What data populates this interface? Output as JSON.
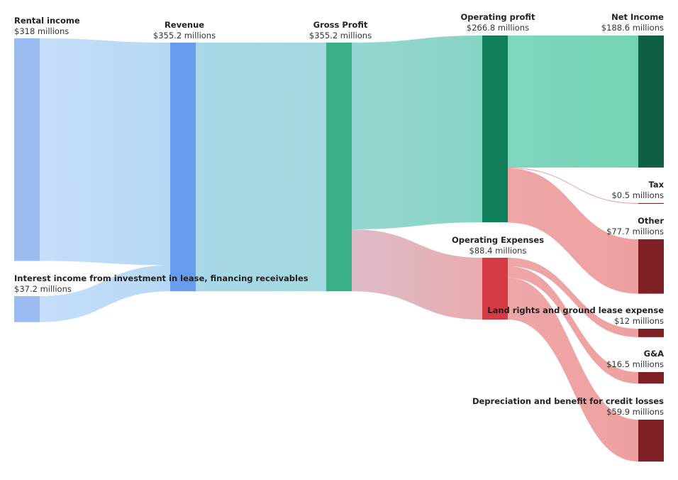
{
  "chart_data": {
    "type": "sankey",
    "unit": "millions",
    "nodes": [
      {
        "id": "rental",
        "title": "Rental income",
        "value_label": "$318 millions",
        "value": 318,
        "color": "#9bbcf0"
      },
      {
        "id": "interest",
        "title": "Interest income from investment in lease, financing receivables",
        "value_label": "$37.2 millions",
        "value": 37.2,
        "color": "#9bbcf0"
      },
      {
        "id": "revenue",
        "title": "Revenue",
        "value_label": "$355.2 millions",
        "value": 355.2,
        "color": "#679cee"
      },
      {
        "id": "gross",
        "title": "Gross Profit",
        "value_label": "$355.2 millions",
        "value": 355.2,
        "color": "#3aaf88"
      },
      {
        "id": "opprofit",
        "title": "Operating profit",
        "value_label": "$266.8 millions",
        "value": 266.8,
        "color": "#107e5a"
      },
      {
        "id": "opex",
        "title": "Operating Expenses",
        "value_label": "$88.4 millions",
        "value": 88.4,
        "color": "#d63a44"
      },
      {
        "id": "net",
        "title": "Net Income",
        "value_label": "$188.6 millions",
        "value": 188.6,
        "color": "#0e5f44"
      },
      {
        "id": "tax",
        "title": "Tax",
        "value_label": "$0.5 millions",
        "value": 0.5,
        "color": "#7e2024"
      },
      {
        "id": "other",
        "title": "Other",
        "value_label": "$77.7 millions",
        "value": 77.7,
        "color": "#7e2024"
      },
      {
        "id": "land",
        "title": "Land rights and ground lease expense",
        "value_label": "$12 millions",
        "value": 12,
        "color": "#7e2024"
      },
      {
        "id": "ga",
        "title": "G&A",
        "value_label": "$16.5 millions",
        "value": 16.5,
        "color": "#7e2024"
      },
      {
        "id": "dep",
        "title": "Depreciation and benefit for credit losses",
        "value_label": "$59.9 millions",
        "value": 59.9,
        "color": "#7e2024"
      }
    ],
    "links": [
      {
        "source": "rental",
        "target": "revenue",
        "value": 318,
        "color_from": "#c5defa",
        "color_to": "#b6d8f4"
      },
      {
        "source": "interest",
        "target": "revenue",
        "value": 37.2,
        "color_from": "#c5defa",
        "color_to": "#b6d8f4"
      },
      {
        "source": "revenue",
        "target": "gross",
        "value": 355.2,
        "color_from": "#a9d8e8",
        "color_to": "#a2d9e0"
      },
      {
        "source": "gross",
        "target": "opprofit",
        "value": 266.8,
        "color_from": "#96d6d3",
        "color_to": "#86d4c4"
      },
      {
        "source": "gross",
        "target": "opex",
        "value": 88.4,
        "color_from": "#debbc8",
        "color_to": "#e8acae"
      },
      {
        "source": "opprofit",
        "target": "net",
        "value": 188.6,
        "color_from": "#7fd6bf",
        "color_to": "#74d3b6"
      },
      {
        "source": "opprofit",
        "target": "tax",
        "value": 0.5,
        "color_from": "#e89c9c",
        "color_to": "#e89c9c"
      },
      {
        "source": "opprofit",
        "target": "other",
        "value": 77.7,
        "color_from": "#eea6a6",
        "color_to": "#eea0a0"
      },
      {
        "source": "opex",
        "target": "land",
        "value": 12,
        "color_from": "#eea6a6",
        "color_to": "#eea0a0"
      },
      {
        "source": "opex",
        "target": "ga",
        "value": 16.5,
        "color_from": "#eea6a6",
        "color_to": "#eea0a0"
      },
      {
        "source": "opex",
        "target": "dep",
        "value": 59.9,
        "color_from": "#eea6a6",
        "color_to": "#eea0a0"
      }
    ]
  }
}
